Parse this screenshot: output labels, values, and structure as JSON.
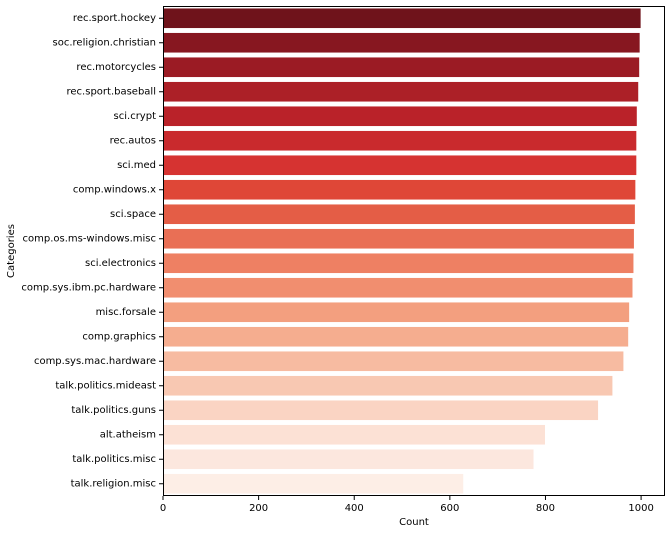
{
  "chart_data": {
    "type": "bar",
    "orientation": "horizontal",
    "xlabel": "Count",
    "ylabel": "Categories",
    "xlim": [
      0,
      1050
    ],
    "xticks": [
      0,
      200,
      400,
      600,
      800,
      1000
    ],
    "grid": false,
    "legend": "none",
    "palette": "Reds (dark to light)",
    "categories": [
      "rec.sport.hockey",
      "soc.religion.christian",
      "rec.motorcycles",
      "rec.sport.baseball",
      "sci.crypt",
      "rec.autos",
      "sci.med",
      "comp.windows.x",
      "sci.space",
      "comp.os.ms-windows.misc",
      "sci.electronics",
      "comp.sys.ibm.pc.hardware",
      "misc.forsale",
      "comp.graphics",
      "comp.sys.mac.hardware",
      "talk.politics.mideast",
      "talk.politics.guns",
      "alt.atheism",
      "talk.politics.misc",
      "talk.religion.misc"
    ],
    "values": [
      999,
      997,
      996,
      994,
      991,
      990,
      990,
      988,
      987,
      985,
      984,
      982,
      975,
      973,
      963,
      940,
      910,
      799,
      775,
      628
    ],
    "colors": [
      "#6f131b",
      "#871720",
      "#9b1b24",
      "#ac2027",
      "#ba2229",
      "#c92a2d",
      "#d63331",
      "#df4737",
      "#e45d46",
      "#e96f55",
      "#ee8063",
      "#f18e6f",
      "#f39f7f",
      "#f5ad8f",
      "#f7bba1",
      "#f8c8b2",
      "#fad4c3",
      "#fce1d5",
      "#fce7de",
      "#fdeee6"
    ]
  }
}
